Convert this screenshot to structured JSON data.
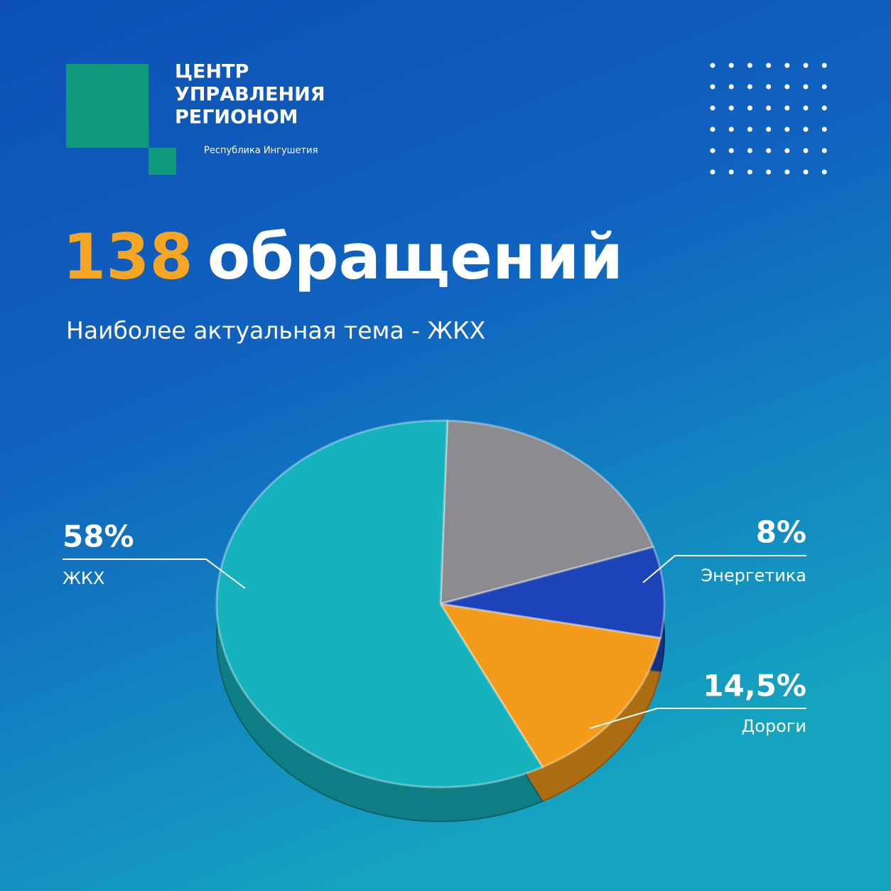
{
  "logo": {
    "lines": [
      "ЦЕНТР",
      "УПРАВЛЕНИЯ",
      "РЕГИОНОМ"
    ],
    "region": "Республика Ингушетия"
  },
  "headline": {
    "count": 138,
    "text": "обращений"
  },
  "chart_data": {
    "type": "pie",
    "subtitle": "Наиболее актуальная тема - ЖКХ",
    "categories": [
      null,
      "Энергетика",
      "Дороги",
      "ЖКХ"
    ],
    "values": [
      19.5,
      8,
      14.5,
      58
    ],
    "value_labels": [
      null,
      "8%",
      "14,5%",
      "58%"
    ],
    "colors": [
      "#8c8b8f",
      "#1c44b8",
      "#f59b1b",
      "#16b2bd"
    ]
  }
}
